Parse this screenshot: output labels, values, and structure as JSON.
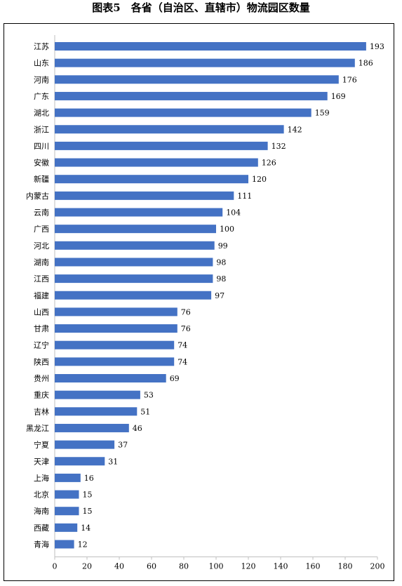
{
  "title": "图表5　各省（自治区、直辖市）物流园区数量",
  "chart_data": {
    "type": "bar",
    "orientation": "horizontal",
    "categories": [
      "江苏",
      "山东",
      "河南",
      "广东",
      "湖北",
      "浙江",
      "四川",
      "安徽",
      "新疆",
      "内蒙古",
      "云南",
      "广西",
      "河北",
      "湖南",
      "江西",
      "福建",
      "山西",
      "甘肃",
      "辽宁",
      "陕西",
      "贵州",
      "重庆",
      "吉林",
      "黑龙江",
      "宁夏",
      "天津",
      "上海",
      "北京",
      "海南",
      "西藏",
      "青海"
    ],
    "values": [
      193,
      186,
      176,
      169,
      159,
      142,
      132,
      126,
      120,
      111,
      104,
      100,
      99,
      98,
      98,
      97,
      76,
      76,
      74,
      74,
      69,
      53,
      51,
      46,
      37,
      31,
      16,
      15,
      15,
      14,
      12
    ],
    "xlim": [
      0,
      200
    ],
    "xticks": [
      0,
      20,
      40,
      60,
      80,
      100,
      120,
      140,
      160,
      180,
      200
    ],
    "bar_color": "#4472c4",
    "grid": false,
    "data_labels": true
  }
}
